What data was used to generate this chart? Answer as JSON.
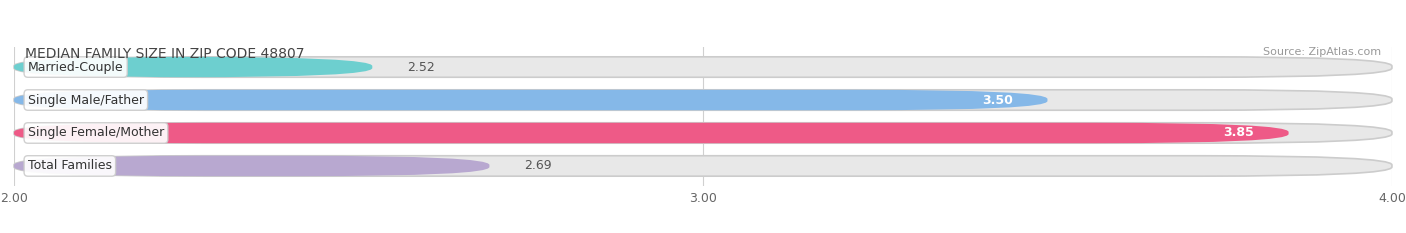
{
  "title": "MEDIAN FAMILY SIZE IN ZIP CODE 48807",
  "source": "Source: ZipAtlas.com",
  "categories": [
    "Married-Couple",
    "Single Male/Father",
    "Single Female/Mother",
    "Total Families"
  ],
  "values": [
    2.52,
    3.5,
    3.85,
    2.69
  ],
  "bar_colors": [
    "#6DCFCF",
    "#85B8E8",
    "#EE5A87",
    "#B8A8D0"
  ],
  "xlim": [
    2.0,
    4.0
  ],
  "xticks": [
    2.0,
    3.0,
    4.0
  ],
  "xtick_labels": [
    "2.00",
    "3.00",
    "4.00"
  ],
  "background_color": "#ffffff",
  "bar_bg_color": "#e8e8e8",
  "bar_height": 0.62,
  "title_fontsize": 10,
  "source_fontsize": 8,
  "label_fontsize": 9,
  "value_fontsize": 9,
  "tick_fontsize": 9,
  "grid_color": "#d0d0d0"
}
